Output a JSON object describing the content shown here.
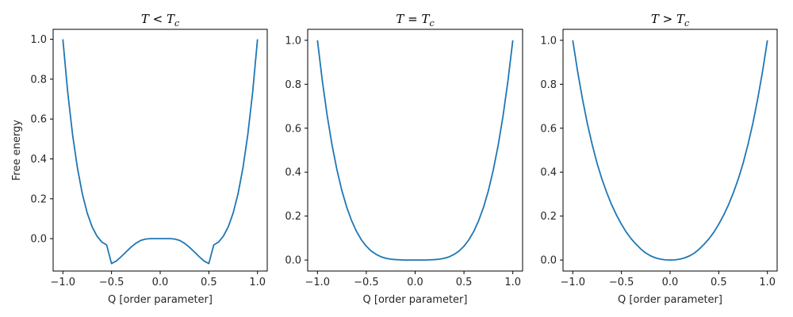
{
  "figure": {
    "line_color": "#1f77b4"
  },
  "chart_data": [
    {
      "type": "line",
      "title": "T < T_c",
      "title_parts": {
        "a": "T",
        "op": " < ",
        "b": "T",
        "sub": "c"
      },
      "xlabel": "Q [order parameter]",
      "ylabel": "Free energy",
      "xlim": [
        -1.1,
        1.1
      ],
      "ylim": [
        -0.1625,
        1.05
      ],
      "xticks": [
        -1.0,
        -0.5,
        0.0,
        0.5,
        1.0
      ],
      "xtick_labels": [
        "−1.0",
        "−0.5",
        "0.0",
        "0.5",
        "1.0"
      ],
      "yticks": [
        0.0,
        0.2,
        0.4,
        0.6,
        0.8,
        1.0
      ],
      "ytick_labels": [
        "0.0",
        "0.2",
        "0.4",
        "0.6",
        "0.8",
        "1.0"
      ],
      "grid": false,
      "series": [
        {
          "x": [
            -1.0,
            -0.95,
            -0.9,
            -0.85,
            -0.8,
            -0.75,
            -0.7,
            -0.65,
            -0.6,
            -0.55,
            -0.5,
            -0.45,
            -0.4,
            -0.35,
            -0.3,
            -0.25,
            -0.2,
            -0.15,
            -0.1,
            -0.05,
            0.0,
            0.05,
            0.1,
            0.15,
            0.2,
            0.25,
            0.3,
            0.35,
            0.4,
            0.45,
            0.5,
            0.55,
            0.6,
            0.65,
            0.7,
            0.75,
            0.8,
            0.85,
            0.9,
            0.95,
            1.0
          ],
          "y": [
            1.0,
            0.734,
            0.521,
            0.354,
            0.225,
            0.129,
            0.06,
            0.013,
            -0.017,
            -0.032,
            -0.125,
            -0.112,
            -0.09,
            -0.066,
            -0.043,
            -0.023,
            -0.009,
            -0.002,
            0.0,
            0.0,
            0.0,
            0.0,
            0.0,
            -0.002,
            -0.009,
            -0.023,
            -0.043,
            -0.066,
            -0.09,
            -0.112,
            -0.125,
            -0.032,
            -0.017,
            0.013,
            0.06,
            0.129,
            0.225,
            0.354,
            0.521,
            0.734,
            1.0
          ]
        }
      ]
    },
    {
      "type": "line",
      "title": "T = T_c",
      "title_parts": {
        "a": "T",
        "op": " = ",
        "b": "T",
        "sub": "c"
      },
      "xlabel": "Q [order parameter]",
      "ylabel": "",
      "xlim": [
        -1.1,
        1.1
      ],
      "ylim": [
        -0.05,
        1.05
      ],
      "xticks": [
        -1.0,
        -0.5,
        0.0,
        0.5,
        1.0
      ],
      "xtick_labels": [
        "−1.0",
        "−0.5",
        "0.0",
        "0.5",
        "1.0"
      ],
      "yticks": [
        0.0,
        0.2,
        0.4,
        0.6,
        0.8,
        1.0
      ],
      "ytick_labels": [
        "0.0",
        "0.2",
        "0.4",
        "0.6",
        "0.8",
        "1.0"
      ],
      "grid": false,
      "series": [
        {
          "x": [
            -1.0,
            -0.95,
            -0.9,
            -0.85,
            -0.8,
            -0.75,
            -0.7,
            -0.65,
            -0.6,
            -0.55,
            -0.5,
            -0.45,
            -0.4,
            -0.35,
            -0.3,
            -0.25,
            -0.2,
            -0.15,
            -0.1,
            -0.05,
            0.0,
            0.05,
            0.1,
            0.15,
            0.2,
            0.25,
            0.3,
            0.35,
            0.4,
            0.45,
            0.5,
            0.55,
            0.6,
            0.65,
            0.7,
            0.75,
            0.8,
            0.85,
            0.9,
            0.95,
            1.0
          ],
          "y": [
            1.0,
            0.815,
            0.656,
            0.522,
            0.41,
            0.316,
            0.24,
            0.179,
            0.13,
            0.092,
            0.063,
            0.041,
            0.026,
            0.015,
            0.008,
            0.004,
            0.002,
            0.001,
            0.0,
            0.0,
            0.0,
            0.0,
            0.0,
            0.001,
            0.002,
            0.004,
            0.008,
            0.015,
            0.026,
            0.041,
            0.063,
            0.092,
            0.13,
            0.179,
            0.24,
            0.316,
            0.41,
            0.522,
            0.656,
            0.815,
            1.0
          ]
        }
      ]
    },
    {
      "type": "line",
      "title": "T > T_c",
      "title_parts": {
        "a": "T",
        "op": " > ",
        "b": "T",
        "sub": "c"
      },
      "xlabel": "Q [order parameter]",
      "ylabel": "",
      "xlim": [
        -1.1,
        1.1
      ],
      "ylim": [
        -0.05,
        1.05
      ],
      "xticks": [
        -1.0,
        -0.5,
        0.0,
        0.5,
        1.0
      ],
      "xtick_labels": [
        "−1.0",
        "−0.5",
        "0.0",
        "0.5",
        "1.0"
      ],
      "yticks": [
        0.0,
        0.2,
        0.4,
        0.6,
        0.8,
        1.0
      ],
      "ytick_labels": [
        "0.0",
        "0.2",
        "0.4",
        "0.6",
        "0.8",
        "1.0"
      ],
      "grid": false,
      "series": [
        {
          "x": [
            -1.0,
            -0.95,
            -0.9,
            -0.85,
            -0.8,
            -0.75,
            -0.7,
            -0.65,
            -0.6,
            -0.55,
            -0.5,
            -0.45,
            -0.4,
            -0.35,
            -0.3,
            -0.25,
            -0.2,
            -0.15,
            -0.1,
            -0.05,
            0.0,
            0.05,
            0.1,
            0.15,
            0.2,
            0.25,
            0.3,
            0.35,
            0.4,
            0.45,
            0.5,
            0.55,
            0.6,
            0.65,
            0.7,
            0.75,
            0.8,
            0.85,
            0.9,
            0.95,
            1.0
          ],
          "y": [
            1.0,
            0.858,
            0.733,
            0.621,
            0.525,
            0.44,
            0.368,
            0.306,
            0.251,
            0.204,
            0.163,
            0.127,
            0.097,
            0.072,
            0.05,
            0.032,
            0.019,
            0.01,
            0.004,
            0.001,
            0.0,
            0.001,
            0.004,
            0.01,
            0.019,
            0.032,
            0.05,
            0.072,
            0.097,
            0.127,
            0.163,
            0.204,
            0.251,
            0.306,
            0.368,
            0.44,
            0.525,
            0.621,
            0.733,
            0.858,
            1.0
          ]
        }
      ]
    }
  ]
}
